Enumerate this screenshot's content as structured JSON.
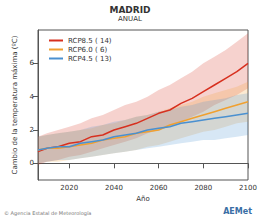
{
  "chart_data": {
    "type": "line",
    "title": "MADRID",
    "subtitle": "ANUAL",
    "x_label": "Año",
    "y_label": "Cambio de la temperatura máxima (ºC)",
    "annotations": [
      "© Agencia Estatal de Meteorología",
      "AEMet"
    ],
    "x": [
      2006,
      2010,
      2015,
      2020,
      2025,
      2030,
      2035,
      2040,
      2045,
      2050,
      2055,
      2060,
      2065,
      2070,
      2075,
      2080,
      2085,
      2090,
      2095,
      2100
    ],
    "series": [
      {
        "name": "RCP8.5 ( 14)",
        "color": "#d7301f",
        "values": [
          0.7,
          0.9,
          1.0,
          1.2,
          1.3,
          1.6,
          1.7,
          2.0,
          2.2,
          2.4,
          2.7,
          3.0,
          3.2,
          3.6,
          3.9,
          4.3,
          4.7,
          5.1,
          5.5,
          6.0
        ],
        "lower": [
          -0.1,
          0.1,
          0.2,
          0.4,
          0.5,
          0.7,
          0.9,
          1.1,
          1.3,
          1.5,
          1.8,
          2.0,
          2.2,
          2.5,
          2.8,
          3.1,
          3.5,
          3.8,
          4.1,
          4.5
        ],
        "upper": [
          1.6,
          1.8,
          2.0,
          2.2,
          2.4,
          2.7,
          2.9,
          3.2,
          3.5,
          3.7,
          4.0,
          4.4,
          4.7,
          5.1,
          5.5,
          6.0,
          6.4,
          6.8,
          7.3,
          7.8
        ]
      },
      {
        "name": "RCP6.0 ( 6)",
        "color": "#f0a030",
        "values": [
          0.8,
          0.9,
          0.9,
          1.0,
          1.1,
          1.2,
          1.4,
          1.5,
          1.6,
          1.8,
          1.9,
          2.0,
          2.3,
          2.5,
          2.7,
          2.9,
          3.1,
          3.3,
          3.5,
          3.7
        ],
        "lower": [
          0.0,
          0.1,
          0.1,
          0.2,
          0.3,
          0.4,
          0.5,
          0.6,
          0.7,
          0.8,
          1.0,
          1.1,
          1.3,
          1.5,
          1.7,
          1.9,
          2.0,
          2.2,
          2.4,
          2.5
        ],
        "upper": [
          1.6,
          1.7,
          1.8,
          1.9,
          2.0,
          2.1,
          2.3,
          2.4,
          2.6,
          2.8,
          2.9,
          3.1,
          3.3,
          3.5,
          3.7,
          4.0,
          4.2,
          4.4,
          4.6,
          4.9
        ]
      },
      {
        "name": "RCP4.5 ( 13)",
        "color": "#4a90d0",
        "values": [
          0.8,
          0.9,
          1.0,
          1.0,
          1.2,
          1.3,
          1.4,
          1.6,
          1.7,
          1.8,
          2.0,
          2.1,
          2.2,
          2.4,
          2.5,
          2.6,
          2.7,
          2.8,
          2.9,
          3.0
        ],
        "lower": [
          0.0,
          0.1,
          0.2,
          0.2,
          0.3,
          0.4,
          0.5,
          0.6,
          0.7,
          0.8,
          0.9,
          1.0,
          1.1,
          1.2,
          1.3,
          1.4,
          1.4,
          1.5,
          1.6,
          1.7
        ],
        "upper": [
          1.6,
          1.7,
          1.8,
          1.9,
          2.0,
          2.2,
          2.3,
          2.5,
          2.6,
          2.8,
          2.9,
          3.1,
          3.2,
          3.4,
          3.5,
          3.7,
          3.8,
          3.9,
          4.1,
          4.2
        ]
      }
    ],
    "xlim": [
      2006,
      2100
    ],
    "xticks": [
      2020,
      2040,
      2060,
      2080,
      2100
    ],
    "ylim": [
      -1,
      8
    ],
    "yticks": [
      0,
      2,
      4,
      6
    ],
    "grid": false,
    "legend": "upper left"
  }
}
